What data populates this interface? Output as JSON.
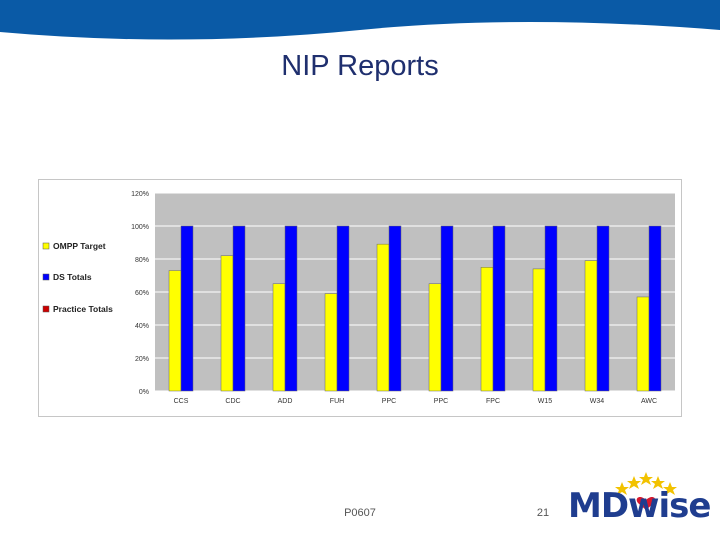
{
  "slide": {
    "title": "NIP Reports",
    "footer_code": "P0607",
    "page_number": "21",
    "logo_text": "MDwise",
    "colors": {
      "banner": "#0a5aa6",
      "title": "#1f2f6e",
      "plot_bg": "#c0c0c0"
    }
  },
  "chart_data": {
    "type": "bar",
    "categories": [
      "CCS",
      "CDC",
      "ADD",
      "FUH",
      "PPC",
      "PPC",
      "FPC",
      "W15",
      "W34",
      "AWC"
    ],
    "series": [
      {
        "name": "OMPP Target",
        "color": "#ffff00",
        "values": [
          73,
          82,
          65,
          59,
          89,
          65,
          75,
          74,
          79,
          57
        ]
      },
      {
        "name": "DS Totals",
        "color": "#0000ff",
        "values": [
          100,
          100,
          100,
          100,
          100,
          100,
          100,
          100,
          100,
          100
        ]
      },
      {
        "name": "Practice Totals",
        "color": "#cc0000",
        "values": [
          0,
          0,
          0,
          0,
          0,
          0,
          0,
          0,
          0,
          0
        ]
      }
    ],
    "yticks": [
      "0%",
      "20%",
      "40%",
      "60%",
      "80%",
      "100%",
      "120%"
    ],
    "ylim": [
      0,
      120
    ],
    "legend_position": "left",
    "title": "",
    "xlabel": "",
    "ylabel": ""
  }
}
